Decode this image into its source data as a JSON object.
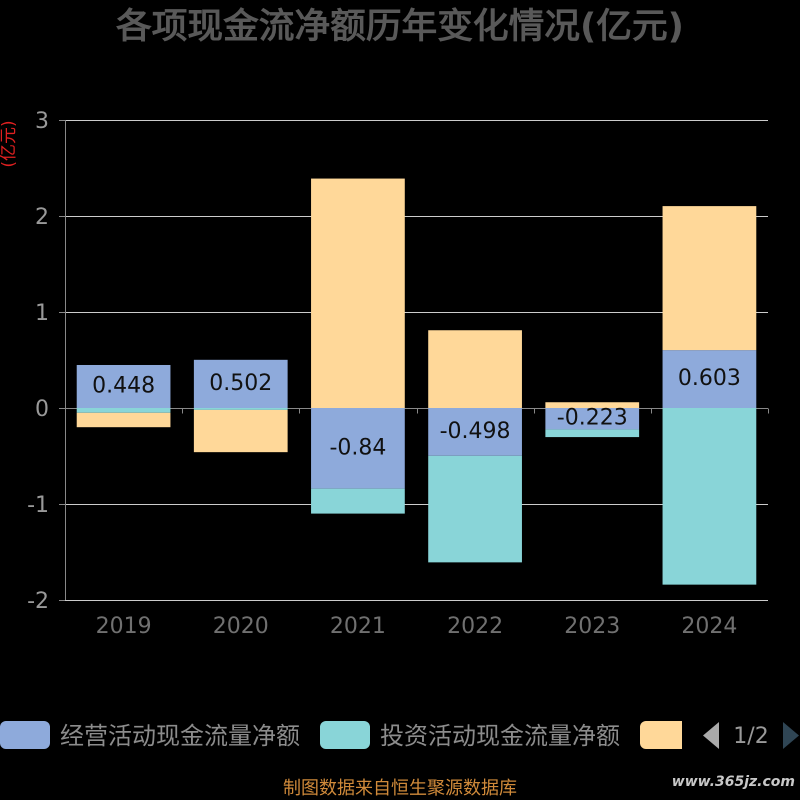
{
  "chart_data": {
    "type": "bar",
    "stacked": true,
    "title": "各项现金流净额历年变化情况(亿元)",
    "xlabel": "",
    "ylabel": "(亿元)",
    "categories": [
      "2019",
      "2020",
      "2021",
      "2022",
      "2023",
      "2024"
    ],
    "yticks": [
      3,
      2,
      1,
      0,
      -1,
      -2
    ],
    "ylim": [
      -2,
      3
    ],
    "grid": true,
    "series": [
      {
        "name": "经营活动现金流量净额",
        "color": "#8eaadb",
        "show_labels": true,
        "values": [
          0.448,
          0.502,
          -0.84,
          -0.498,
          -0.223,
          0.603
        ]
      },
      {
        "name": "投资活动现金流量净额",
        "color": "#89d5d8",
        "show_labels": false,
        "values": [
          -0.05,
          -0.02,
          -0.26,
          -1.11,
          -0.08,
          -1.84
        ]
      },
      {
        "name": "",
        "color": "#ffd899",
        "show_labels": false,
        "values": [
          -0.15,
          -0.44,
          2.39,
          0.81,
          0.06,
          1.5
        ]
      }
    ],
    "legend": {
      "position": "bottom",
      "page_indicator": "1/2",
      "prev_page_icon": "triangle-left-icon",
      "next_page_icon": "triangle-right-icon",
      "prev_icon_color": "#aaaaaa",
      "next_icon_color": "#2f4554"
    }
  },
  "source_note": "制图数据来自恒生聚源数据库",
  "watermark": "www.365jz.com",
  "colors": {
    "background": "#000000",
    "title": "#595959",
    "y_axis_name": "#e02020",
    "source_note": "#d08a3a",
    "watermark": "#c8c8c8"
  }
}
